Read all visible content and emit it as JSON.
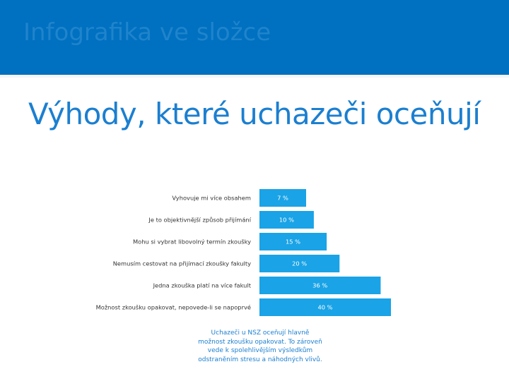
{
  "header": {
    "title": "Infografika ve složce"
  },
  "colors": {
    "header_band": "#0070c0",
    "bar": "#1aa3e6",
    "accent_text": "#1b7fd0"
  },
  "chart_data": {
    "type": "bar",
    "orientation": "horizontal",
    "title": "Výhody, které uchazeči oceňují",
    "categories": [
      "Vyhovuje mi více obsahem",
      "Je to objektivnější způsob přijímání",
      "Mohu si vybrat libovolný termín zkoušky",
      "Nemusím cestovat na přijímací zkoušky fakulty",
      "Jedna zkouška platí na více fakult",
      "Možnost zkoušku opakovat, nepovede-li se napoprvé"
    ],
    "values": [
      7,
      10,
      15,
      20,
      36,
      40
    ],
    "value_labels": [
      "7 %",
      "10 %",
      "15 %",
      "20 %",
      "36 %",
      "40 %"
    ],
    "unit": "%",
    "grid": false,
    "legend": "none"
  },
  "note": {
    "text": "Uchazeči u NSZ oceňují hlavně možnost zkoušku opakovat. To zároveň vede k spolehlivějším výsledkům odstraněním stresu a náhodných vlivů."
  }
}
